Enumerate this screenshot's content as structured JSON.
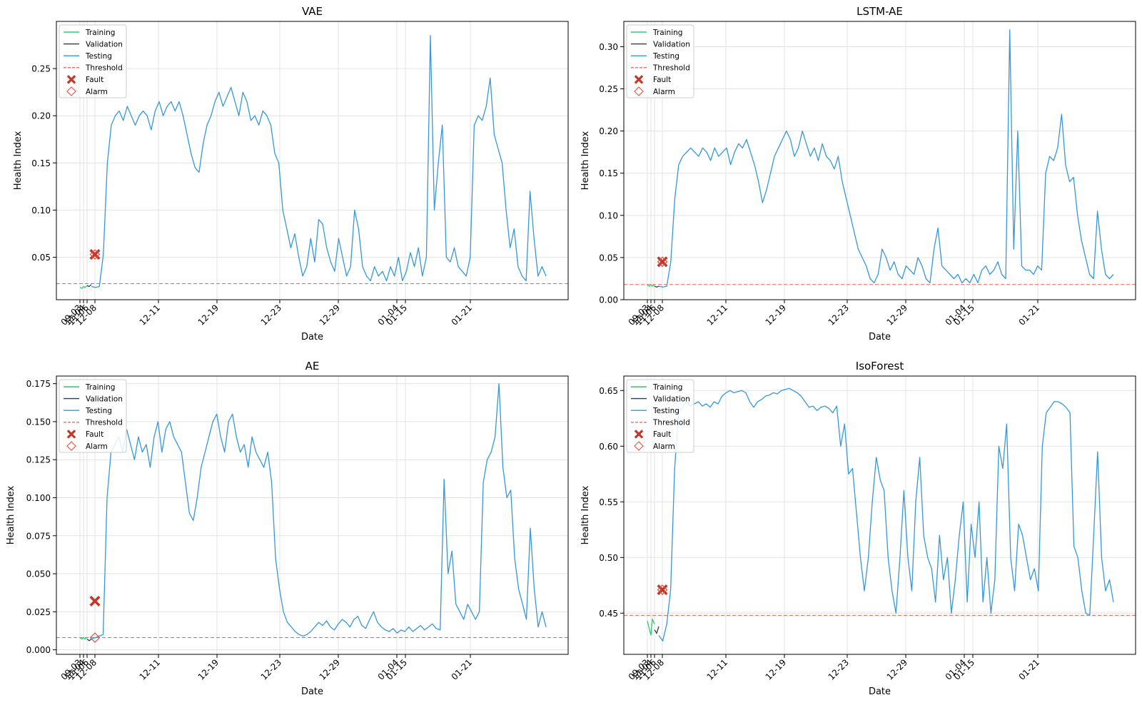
{
  "colors": {
    "training": "#2ecc71",
    "validation": "#2c3e50",
    "testing": "#3498db",
    "threshold": "#e74c3c",
    "fault": "#c0392b",
    "alarm": "#e74c3c"
  },
  "legend": [
    "Training",
    "Validation",
    "Testing",
    "Threshold",
    "Fault",
    "Alarm"
  ],
  "chart_data": [
    {
      "type": "line",
      "title": "VAE",
      "xlabel": "Date",
      "ylabel": "Health Index",
      "grid": true,
      "legend_position": "upper-left",
      "x_tick_labels": [
        "09-03",
        "11-04",
        "11-06",
        "12-08",
        "12-11",
        "12-19",
        "12-23",
        "12-29",
        "01-04",
        "01-15",
        "01-21"
      ],
      "ylim": [
        0.005,
        0.3
      ],
      "y_ticks": [
        "0.05",
        "0.10",
        "0.15",
        "0.20",
        "0.25"
      ],
      "threshold": 0.022,
      "fault": 0.053,
      "alarm": 0.053,
      "series": [
        {
          "name": "Training",
          "values": [
            0.018,
            0.017,
            0.019,
            0.018,
            0.02
          ]
        },
        {
          "name": "Validation",
          "values": [
            0.02,
            0.019,
            0.021
          ]
        },
        {
          "name": "Testing",
          "values": [
            0.019,
            0.018,
            0.019,
            0.053,
            0.15,
            0.19,
            0.2,
            0.205,
            0.195,
            0.21,
            0.2,
            0.19,
            0.2,
            0.205,
            0.2,
            0.185,
            0.205,
            0.215,
            0.2,
            0.21,
            0.215,
            0.205,
            0.215,
            0.2,
            0.18,
            0.16,
            0.145,
            0.14,
            0.17,
            0.19,
            0.2,
            0.215,
            0.225,
            0.21,
            0.22,
            0.23,
            0.215,
            0.2,
            0.225,
            0.215,
            0.195,
            0.2,
            0.19,
            0.205,
            0.2,
            0.19,
            0.16,
            0.15,
            0.1,
            0.08,
            0.06,
            0.075,
            0.05,
            0.03,
            0.04,
            0.07,
            0.045,
            0.09,
            0.085,
            0.06,
            0.045,
            0.035,
            0.07,
            0.05,
            0.03,
            0.04,
            0.1,
            0.08,
            0.04,
            0.03,
            0.025,
            0.04,
            0.03,
            0.035,
            0.025,
            0.04,
            0.03,
            0.05,
            0.025,
            0.035,
            0.055,
            0.04,
            0.06,
            0.03,
            0.05,
            0.285,
            0.1,
            0.15,
            0.19,
            0.05,
            0.045,
            0.06,
            0.04,
            0.035,
            0.03,
            0.05,
            0.19,
            0.2,
            0.195,
            0.21,
            0.24,
            0.18,
            0.165,
            0.15,
            0.1,
            0.06,
            0.08,
            0.04,
            0.03,
            0.025,
            0.12,
            0.07,
            0.03,
            0.04,
            0.03
          ]
        }
      ]
    },
    {
      "type": "line",
      "title": "LSTM-AE",
      "xlabel": "Date",
      "ylabel": "Health Index",
      "grid": true,
      "legend_position": "upper-left",
      "x_tick_labels": [
        "09-03",
        "11-04",
        "11-06",
        "12-08",
        "12-11",
        "12-19",
        "12-23",
        "12-29",
        "01-04",
        "01-15",
        "01-21"
      ],
      "ylim": [
        0.0,
        0.33
      ],
      "y_ticks": [
        "0.00",
        "0.05",
        "0.10",
        "0.15",
        "0.20",
        "0.25",
        "0.30"
      ],
      "threshold": 0.018,
      "fault": 0.045,
      "alarm": 0.045,
      "series": [
        {
          "name": "Training",
          "values": [
            0.017,
            0.016,
            0.018,
            0.016,
            0.017
          ]
        },
        {
          "name": "Validation",
          "values": [
            0.016,
            0.015,
            0.016
          ]
        },
        {
          "name": "Testing",
          "values": [
            0.016,
            0.015,
            0.016,
            0.045,
            0.12,
            0.16,
            0.17,
            0.175,
            0.18,
            0.175,
            0.17,
            0.18,
            0.175,
            0.165,
            0.18,
            0.17,
            0.175,
            0.18,
            0.16,
            0.175,
            0.185,
            0.18,
            0.19,
            0.175,
            0.16,
            0.14,
            0.115,
            0.13,
            0.15,
            0.17,
            0.18,
            0.19,
            0.2,
            0.19,
            0.17,
            0.18,
            0.2,
            0.185,
            0.17,
            0.18,
            0.165,
            0.185,
            0.17,
            0.165,
            0.155,
            0.17,
            0.14,
            0.12,
            0.1,
            0.08,
            0.06,
            0.05,
            0.04,
            0.025,
            0.02,
            0.03,
            0.06,
            0.05,
            0.035,
            0.045,
            0.03,
            0.025,
            0.04,
            0.035,
            0.03,
            0.05,
            0.04,
            0.025,
            0.02,
            0.06,
            0.085,
            0.04,
            0.035,
            0.03,
            0.025,
            0.03,
            0.02,
            0.025,
            0.02,
            0.03,
            0.02,
            0.035,
            0.04,
            0.03,
            0.035,
            0.045,
            0.03,
            0.025,
            0.32,
            0.06,
            0.2,
            0.04,
            0.035,
            0.035,
            0.03,
            0.04,
            0.035,
            0.15,
            0.17,
            0.165,
            0.18,
            0.22,
            0.16,
            0.14,
            0.145,
            0.1,
            0.07,
            0.05,
            0.03,
            0.025,
            0.105,
            0.06,
            0.03,
            0.025,
            0.03
          ]
        }
      ]
    },
    {
      "type": "line",
      "title": "AE",
      "xlabel": "Date",
      "ylabel": "Health Index",
      "grid": true,
      "legend_position": "upper-left",
      "x_tick_labels": [
        "09-03",
        "11-04",
        "11-06",
        "12-08",
        "12-11",
        "12-19",
        "12-23",
        "12-29",
        "01-04",
        "01-15",
        "01-21"
      ],
      "ylim": [
        -0.003,
        0.18
      ],
      "y_ticks": [
        "0.000",
        "0.025",
        "0.050",
        "0.075",
        "0.100",
        "0.125",
        "0.150",
        "0.175"
      ],
      "threshold": 0.008,
      "fault": 0.032,
      "alarm": 0.008,
      "series": [
        {
          "name": "Training",
          "values": [
            0.008,
            0.007,
            0.008,
            0.007,
            0.008
          ]
        },
        {
          "name": "Validation",
          "values": [
            0.007,
            0.006,
            0.007
          ]
        },
        {
          "name": "Testing",
          "values": [
            0.007,
            0.008,
            0.009,
            0.01,
            0.1,
            0.13,
            0.135,
            0.14,
            0.13,
            0.145,
            0.135,
            0.125,
            0.14,
            0.13,
            0.135,
            0.12,
            0.14,
            0.15,
            0.13,
            0.145,
            0.15,
            0.14,
            0.135,
            0.13,
            0.11,
            0.09,
            0.085,
            0.1,
            0.12,
            0.13,
            0.14,
            0.15,
            0.155,
            0.14,
            0.13,
            0.15,
            0.155,
            0.14,
            0.13,
            0.135,
            0.12,
            0.14,
            0.13,
            0.125,
            0.12,
            0.13,
            0.11,
            0.06,
            0.04,
            0.025,
            0.018,
            0.015,
            0.012,
            0.01,
            0.009,
            0.01,
            0.012,
            0.015,
            0.018,
            0.016,
            0.019,
            0.015,
            0.013,
            0.017,
            0.02,
            0.018,
            0.015,
            0.02,
            0.022,
            0.016,
            0.014,
            0.02,
            0.025,
            0.018,
            0.015,
            0.013,
            0.012,
            0.014,
            0.011,
            0.013,
            0.012,
            0.015,
            0.012,
            0.014,
            0.016,
            0.013,
            0.015,
            0.017,
            0.014,
            0.013,
            0.112,
            0.05,
            0.065,
            0.03,
            0.025,
            0.02,
            0.03,
            0.025,
            0.02,
            0.025,
            0.11,
            0.125,
            0.13,
            0.14,
            0.175,
            0.12,
            0.1,
            0.105,
            0.06,
            0.04,
            0.03,
            0.02,
            0.08,
            0.04,
            0.015,
            0.025,
            0.015
          ]
        }
      ]
    },
    {
      "type": "line",
      "title": "IsoForest",
      "xlabel": "Date",
      "ylabel": "Health Index",
      "grid": true,
      "legend_position": "upper-left",
      "x_tick_labels": [
        "09-03",
        "11-04",
        "11-06",
        "12-08",
        "12-11",
        "12-19",
        "12-23",
        "12-29",
        "01-04",
        "01-15",
        "01-21"
      ],
      "ylim": [
        0.413,
        0.663
      ],
      "y_ticks": [
        "0.45",
        "0.50",
        "0.55",
        "0.60",
        "0.65"
      ],
      "threshold": 0.448,
      "fault": 0.471,
      "alarm": 0.471,
      "series": [
        {
          "name": "Training",
          "values": [
            0.443,
            0.435,
            0.43,
            0.445,
            0.44
          ]
        },
        {
          "name": "Validation",
          "values": [
            0.435,
            0.432,
            0.438
          ]
        },
        {
          "name": "Testing",
          "values": [
            0.43,
            0.425,
            0.44,
            0.471,
            0.58,
            0.63,
            0.635,
            0.64,
            0.636,
            0.638,
            0.64,
            0.636,
            0.638,
            0.635,
            0.64,
            0.638,
            0.645,
            0.648,
            0.65,
            0.648,
            0.649,
            0.65,
            0.648,
            0.64,
            0.635,
            0.64,
            0.642,
            0.645,
            0.646,
            0.648,
            0.647,
            0.65,
            0.651,
            0.652,
            0.65,
            0.648,
            0.645,
            0.64,
            0.635,
            0.636,
            0.632,
            0.635,
            0.636,
            0.634,
            0.63,
            0.636,
            0.6,
            0.62,
            0.575,
            0.58,
            0.54,
            0.5,
            0.47,
            0.5,
            0.55,
            0.59,
            0.57,
            0.56,
            0.5,
            0.47,
            0.45,
            0.5,
            0.56,
            0.5,
            0.47,
            0.55,
            0.59,
            0.52,
            0.5,
            0.49,
            0.46,
            0.52,
            0.48,
            0.5,
            0.45,
            0.48,
            0.52,
            0.55,
            0.46,
            0.53,
            0.5,
            0.55,
            0.46,
            0.5,
            0.45,
            0.48,
            0.6,
            0.58,
            0.62,
            0.5,
            0.47,
            0.53,
            0.52,
            0.5,
            0.48,
            0.49,
            0.47,
            0.6,
            0.63,
            0.635,
            0.64,
            0.64,
            0.638,
            0.635,
            0.63,
            0.51,
            0.5,
            0.47,
            0.45,
            0.448,
            0.52,
            0.595,
            0.5,
            0.47,
            0.48,
            0.46
          ]
        }
      ]
    }
  ]
}
